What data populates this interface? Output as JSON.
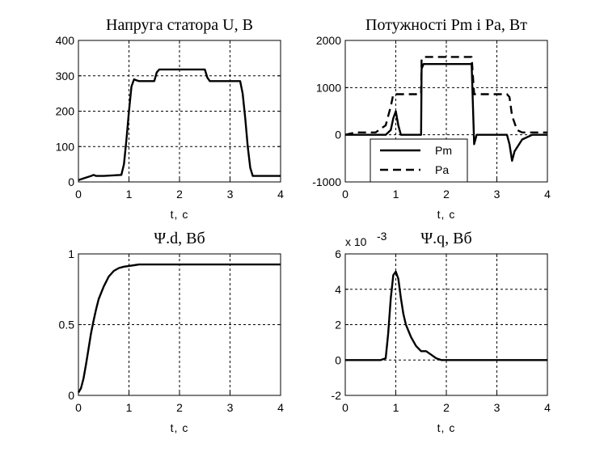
{
  "chart_data": [
    {
      "type": "line",
      "title": "Напруга статора U, В",
      "xlabel": "t, c",
      "ylabel": "",
      "xlim": [
        0,
        4
      ],
      "ylim": [
        0,
        400
      ],
      "xticks": [
        "0",
        "1",
        "2",
        "3",
        "4"
      ],
      "yticks": [
        "0",
        "100",
        "200",
        "300",
        "400"
      ],
      "grid": true,
      "series": [
        {
          "style": "solid",
          "x": [
            0,
            0.1,
            0.25,
            0.3,
            0.35,
            0.5,
            0.85,
            0.9,
            0.95,
            1.0,
            1.05,
            1.1,
            1.15,
            1.2,
            1.5,
            1.55,
            1.6,
            1.7,
            2.5,
            2.55,
            2.6,
            2.7,
            3.2,
            3.25,
            3.3,
            3.35,
            3.4,
            3.45,
            4.0
          ],
          "y": [
            5,
            10,
            17,
            20,
            17,
            17,
            20,
            50,
            120,
            200,
            270,
            290,
            287,
            285,
            285,
            310,
            318,
            318,
            318,
            295,
            285,
            285,
            285,
            250,
            180,
            100,
            40,
            17,
            17
          ]
        }
      ]
    },
    {
      "type": "line",
      "title": "Потужності Pm і Pa, Вт",
      "xlabel": "t, c",
      "ylabel": "",
      "xlim": [
        0,
        4
      ],
      "ylim": [
        -1000,
        2000
      ],
      "xticks": [
        "0",
        "1",
        "2",
        "3",
        "4"
      ],
      "yticks": [
        "-1000",
        "0",
        "1000",
        "2000"
      ],
      "grid": true,
      "legend": {
        "placement": "lower-left",
        "entries": [
          "Pm",
          "Pa"
        ]
      },
      "series": [
        {
          "name": "Pm",
          "style": "solid",
          "x": [
            0,
            0.8,
            0.9,
            0.95,
            1.0,
            1.05,
            1.1,
            1.5,
            1.51,
            1.55,
            2.45,
            2.5,
            2.55,
            2.6,
            2.65,
            3.2,
            3.25,
            3.3,
            3.35,
            3.5,
            3.7,
            4.0
          ],
          "y": [
            0,
            0,
            100,
            350,
            500,
            200,
            0,
            0,
            1400,
            1500,
            1500,
            1500,
            -200,
            0,
            0,
            0,
            -200,
            -550,
            -350,
            -100,
            0,
            0
          ]
        },
        {
          "name": "Pa",
          "style": "dashed",
          "x": [
            0,
            0.2,
            0.6,
            0.8,
            0.9,
            0.95,
            1.0,
            1.5,
            1.51,
            1.55,
            2.45,
            2.5,
            2.55,
            3.2,
            3.25,
            3.3,
            3.4,
            3.5,
            4.0
          ],
          "y": [
            0,
            50,
            50,
            200,
            600,
            860,
            860,
            860,
            1600,
            1650,
            1650,
            1650,
            860,
            860,
            800,
            400,
            100,
            50,
            50
          ]
        }
      ]
    },
    {
      "type": "line",
      "title": "Ψ.d, Вб",
      "xlabel": "t, c",
      "ylabel": "",
      "xlim": [
        0,
        4
      ],
      "ylim": [
        0,
        1
      ],
      "xticks": [
        "0",
        "1",
        "2",
        "3",
        "4"
      ],
      "yticks": [
        "0",
        "0.5",
        "1"
      ],
      "grid": true,
      "series": [
        {
          "style": "solid",
          "x": [
            0,
            0.05,
            0.1,
            0.15,
            0.2,
            0.25,
            0.3,
            0.35,
            0.4,
            0.5,
            0.6,
            0.7,
            0.8,
            0.9,
            1.0,
            1.1,
            1.2,
            1.5,
            2.0,
            3.0,
            4.0
          ],
          "y": [
            0.02,
            0.05,
            0.12,
            0.22,
            0.33,
            0.44,
            0.53,
            0.61,
            0.68,
            0.77,
            0.84,
            0.88,
            0.9,
            0.91,
            0.915,
            0.92,
            0.925,
            0.925,
            0.925,
            0.925,
            0.925
          ]
        }
      ]
    },
    {
      "type": "line",
      "title": "Ψ.q, Вб",
      "multiplier": "x 10",
      "multiplier_exp": "-3",
      "xlabel": "t, c",
      "ylabel": "",
      "xlim": [
        0,
        4
      ],
      "ylim": [
        -2,
        6
      ],
      "xticks": [
        "0",
        "1",
        "2",
        "3",
        "4"
      ],
      "yticks": [
        "-2",
        "0",
        "2",
        "4",
        "6"
      ],
      "grid": true,
      "series": [
        {
          "style": "solid",
          "x": [
            0,
            0.7,
            0.8,
            0.85,
            0.9,
            0.95,
            1.0,
            1.05,
            1.1,
            1.15,
            1.2,
            1.3,
            1.4,
            1.5,
            1.6,
            1.7,
            1.8,
            1.9,
            2.0,
            3.0,
            4.0
          ],
          "y": [
            0,
            0,
            0.1,
            1.5,
            3.5,
            4.8,
            5.0,
            4.6,
            3.5,
            2.6,
            2.0,
            1.3,
            0.8,
            0.5,
            0.5,
            0.3,
            0.1,
            0,
            0,
            0,
            0
          ]
        }
      ]
    }
  ]
}
